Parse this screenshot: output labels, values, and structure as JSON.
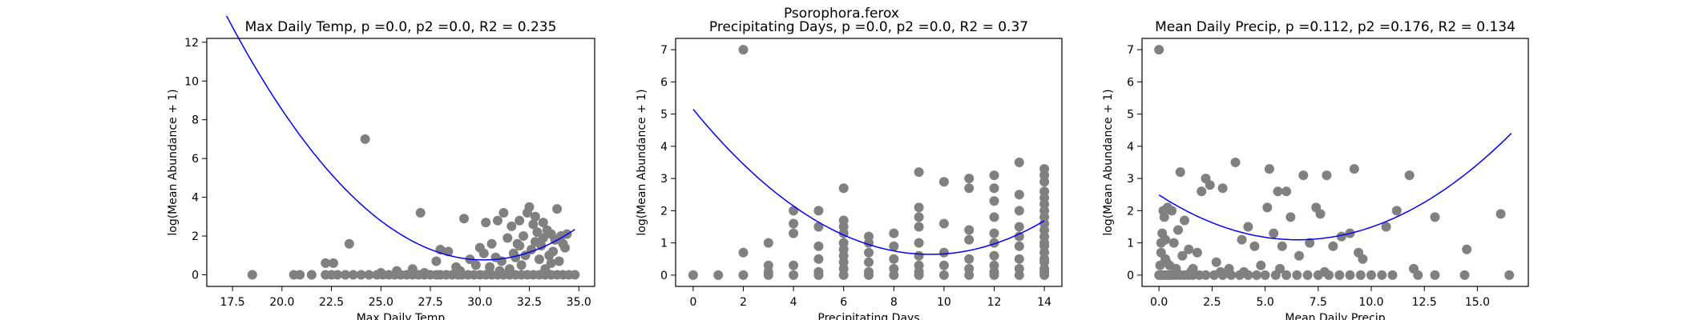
{
  "figure": {
    "suptitle": "Psorophora.ferox"
  },
  "chart_data": [
    {
      "type": "scatter",
      "title": "Max Daily Temp, p =0.0, p2 =0.0, R2 = 0.235",
      "xlabel": "Max Daily Temp",
      "ylabel": "log(Mean Abundance + 1)",
      "xlim": [
        16.2,
        35.8
      ],
      "ylim": [
        -0.6,
        12.2
      ],
      "xticks": [
        17.5,
        20.0,
        22.5,
        25.0,
        27.5,
        30.0,
        32.5,
        35.0
      ],
      "xtick_labels": [
        "17.5",
        "20.0",
        "22.5",
        "25.0",
        "27.5",
        "30.0",
        "32.5",
        "35.0"
      ],
      "yticks": [
        0,
        2,
        4,
        6,
        8,
        10,
        12
      ],
      "ytick_labels": [
        "0",
        "2",
        "4",
        "6",
        "8",
        "10",
        "12"
      ],
      "point_color": "#808080",
      "fit_color": "#0000ff",
      "fit": {
        "type": "quadratic",
        "coef": [
          0.0745,
          -4.5,
          68.72
        ],
        "x_range": [
          17.2,
          34.8
        ]
      },
      "points": [
        [
          18.5,
          0
        ],
        [
          20.6,
          0
        ],
        [
          20.9,
          0
        ],
        [
          21.5,
          0
        ],
        [
          22.2,
          0
        ],
        [
          22.5,
          0
        ],
        [
          22.8,
          0
        ],
        [
          23.2,
          0
        ],
        [
          23.6,
          0
        ],
        [
          24.0,
          0
        ],
        [
          24.4,
          0
        ],
        [
          24.8,
          0
        ],
        [
          25.1,
          0
        ],
        [
          25.4,
          0
        ],
        [
          25.7,
          0
        ],
        [
          26.0,
          0
        ],
        [
          26.3,
          0
        ],
        [
          26.6,
          0
        ],
        [
          26.9,
          0
        ],
        [
          27.2,
          0
        ],
        [
          27.5,
          0
        ],
        [
          27.8,
          0
        ],
        [
          28.0,
          0
        ],
        [
          28.3,
          0
        ],
        [
          28.6,
          0
        ],
        [
          28.9,
          0
        ],
        [
          29.1,
          0
        ],
        [
          29.4,
          0
        ],
        [
          29.7,
          0
        ],
        [
          30.0,
          0
        ],
        [
          30.3,
          0
        ],
        [
          30.6,
          0
        ],
        [
          30.9,
          0
        ],
        [
          31.2,
          0
        ],
        [
          31.5,
          0
        ],
        [
          31.8,
          0
        ],
        [
          32.1,
          0
        ],
        [
          32.4,
          0
        ],
        [
          32.7,
          0
        ],
        [
          33.0,
          0
        ],
        [
          33.3,
          0
        ],
        [
          33.6,
          0
        ],
        [
          33.9,
          0
        ],
        [
          34.2,
          0
        ],
        [
          34.5,
          0
        ],
        [
          34.8,
          0
        ],
        [
          22.2,
          0.6
        ],
        [
          22.6,
          0.6
        ],
        [
          23.4,
          1.6
        ],
        [
          25.0,
          0.1
        ],
        [
          25.8,
          0.2
        ],
        [
          26.6,
          0.3
        ],
        [
          27.2,
          0.1
        ],
        [
          27.8,
          0.7
        ],
        [
          24.2,
          7.0
        ],
        [
          27.0,
          3.2
        ],
        [
          28.0,
          1.3
        ],
        [
          28.4,
          1.2
        ],
        [
          28.8,
          0.4
        ],
        [
          29.2,
          2.9
        ],
        [
          29.8,
          0.5
        ],
        [
          30.2,
          1.1
        ],
        [
          30.3,
          2.7
        ],
        [
          30.6,
          1.6
        ],
        [
          30.9,
          2.8
        ],
        [
          31.2,
          3.2
        ],
        [
          31.6,
          2.5
        ],
        [
          31.8,
          0.9
        ],
        [
          32.0,
          1.5
        ],
        [
          32.2,
          2.0
        ],
        [
          32.4,
          3.2
        ],
        [
          32.5,
          3.5
        ],
        [
          32.7,
          2.6
        ],
        [
          32.8,
          1.7
        ],
        [
          33.0,
          0.8
        ],
        [
          33.2,
          1.9
        ],
        [
          33.4,
          2.3
        ],
        [
          33.6,
          0.6
        ],
        [
          33.7,
          1.2
        ],
        [
          33.9,
          3.4
        ],
        [
          34.1,
          2.0
        ],
        [
          34.3,
          1.4
        ],
        [
          30.5,
          0.4
        ],
        [
          31.0,
          0.2
        ],
        [
          31.4,
          1.9
        ],
        [
          31.7,
          1.1
        ],
        [
          32.1,
          0.5
        ],
        [
          32.3,
          1.0
        ],
        [
          32.6,
          1.3
        ],
        [
          32.9,
          2.2
        ],
        [
          33.1,
          1.5
        ],
        [
          33.3,
          0.3
        ],
        [
          33.5,
          1.0
        ],
        [
          33.8,
          1.8
        ],
        [
          34.0,
          0.7
        ],
        [
          34.4,
          2.1
        ],
        [
          30.8,
          0.9
        ],
        [
          31.5,
          0.3
        ],
        [
          32.0,
          2.8
        ],
        [
          29.5,
          0.8
        ],
        [
          29.0,
          0.2
        ],
        [
          30.0,
          1.4
        ],
        [
          31.1,
          0.7
        ],
        [
          31.9,
          1.6
        ],
        [
          32.8,
          3.0
        ],
        [
          33.2,
          2.7
        ],
        [
          33.6,
          2.1
        ],
        [
          34.2,
          1.6
        ]
      ]
    },
    {
      "type": "scatter",
      "title": "Precipitating Days, p =0.0, p2 =0.0, R2 = 0.37",
      "xlabel": "Precipitating Days",
      "ylabel": "log(Mean Abundance + 1)",
      "xlim": [
        -0.7,
        14.7
      ],
      "ylim": [
        -0.35,
        7.35
      ],
      "xticks": [
        0,
        2,
        4,
        6,
        8,
        10,
        12,
        14
      ],
      "xtick_labels": [
        "0",
        "2",
        "4",
        "6",
        "8",
        "10",
        "12",
        "14"
      ],
      "yticks": [
        0,
        1,
        2,
        3,
        4,
        5,
        6,
        7
      ],
      "ytick_labels": [
        "0",
        "1",
        "2",
        "3",
        "4",
        "5",
        "6",
        "7"
      ],
      "point_color": "#808080",
      "fit_color": "#0000ff",
      "fit": {
        "type": "quadratic",
        "coef": [
          0.0504,
          -0.953,
          5.15
        ],
        "x_range": [
          0,
          14
        ]
      },
      "points": [
        [
          0,
          0
        ],
        [
          1,
          0
        ],
        [
          2,
          0
        ],
        [
          2,
          0.7
        ],
        [
          2,
          7.0
        ],
        [
          3,
          0
        ],
        [
          3,
          0.1
        ],
        [
          3,
          0.3
        ],
        [
          3,
          1.0
        ],
        [
          4,
          0
        ],
        [
          4,
          0.3
        ],
        [
          4,
          1.3
        ],
        [
          4,
          1.6
        ],
        [
          4,
          2.0
        ],
        [
          5,
          0
        ],
        [
          5,
          0.1
        ],
        [
          5,
          0.5
        ],
        [
          5,
          0.9
        ],
        [
          5,
          1.5
        ],
        [
          5,
          2.0
        ],
        [
          6,
          0
        ],
        [
          6,
          0.2
        ],
        [
          6,
          0.4
        ],
        [
          6,
          0.6
        ],
        [
          6,
          0.8
        ],
        [
          6,
          1.0
        ],
        [
          6,
          1.3
        ],
        [
          6,
          1.5
        ],
        [
          6,
          1.7
        ],
        [
          6,
          2.7
        ],
        [
          7,
          0
        ],
        [
          7,
          0.1
        ],
        [
          7,
          0.4
        ],
        [
          7,
          0.7
        ],
        [
          7,
          1.0
        ],
        [
          7,
          1.2
        ],
        [
          8,
          0
        ],
        [
          8,
          0.2
        ],
        [
          8,
          0.5
        ],
        [
          8,
          0.9
        ],
        [
          8,
          1.3
        ],
        [
          9,
          0
        ],
        [
          9,
          0.1
        ],
        [
          9,
          0.3
        ],
        [
          9,
          0.6
        ],
        [
          9,
          1.0
        ],
        [
          9,
          1.5
        ],
        [
          9,
          1.8
        ],
        [
          9,
          2.1
        ],
        [
          9,
          3.2
        ],
        [
          10,
          0
        ],
        [
          10,
          0.3
        ],
        [
          10,
          0.7
        ],
        [
          10,
          1.6
        ],
        [
          10,
          2.9
        ],
        [
          11,
          0
        ],
        [
          11,
          0.2
        ],
        [
          11,
          0.5
        ],
        [
          11,
          1.1
        ],
        [
          11,
          1.4
        ],
        [
          11,
          2.7
        ],
        [
          11,
          3.0
        ],
        [
          12,
          0
        ],
        [
          12,
          0.1
        ],
        [
          12,
          0.3
        ],
        [
          12,
          0.6
        ],
        [
          12,
          1.0
        ],
        [
          12,
          1.3
        ],
        [
          12,
          1.8
        ],
        [
          12,
          2.3
        ],
        [
          12,
          2.7
        ],
        [
          12,
          3.1
        ],
        [
          13,
          0
        ],
        [
          13,
          0.2
        ],
        [
          13,
          0.5
        ],
        [
          13,
          0.9
        ],
        [
          13,
          1.2
        ],
        [
          13,
          1.5
        ],
        [
          13,
          2.0
        ],
        [
          13,
          2.5
        ],
        [
          13,
          3.5
        ],
        [
          14,
          0
        ],
        [
          14,
          0.1
        ],
        [
          14,
          0.2
        ],
        [
          14,
          0.4
        ],
        [
          14,
          0.5
        ],
        [
          14,
          0.7
        ],
        [
          14,
          0.9
        ],
        [
          14,
          1.0
        ],
        [
          14,
          1.2
        ],
        [
          14,
          1.4
        ],
        [
          14,
          1.6
        ],
        [
          14,
          1.8
        ],
        [
          14,
          2.0
        ],
        [
          14,
          2.2
        ],
        [
          14,
          2.4
        ],
        [
          14,
          2.6
        ],
        [
          14,
          2.9
        ],
        [
          14,
          3.1
        ],
        [
          14,
          3.3
        ]
      ]
    },
    {
      "type": "scatter",
      "title": "Mean Daily Precip, p =0.112, p2 =0.176, R2 = 0.134",
      "xlabel": "Mean Daily Precip",
      "ylabel": "log(Mean Abundance + 1)",
      "xlim": [
        -0.8,
        17.4
      ],
      "ylim": [
        -0.35,
        7.35
      ],
      "xticks": [
        0.0,
        2.5,
        5.0,
        7.5,
        10.0,
        12.5,
        15.0
      ],
      "xtick_labels": [
        "0.0",
        "2.5",
        "5.0",
        "7.5",
        "10.0",
        "12.5",
        "15.0"
      ],
      "yticks": [
        0,
        1,
        2,
        3,
        4,
        5,
        6,
        7
      ],
      "ytick_labels": [
        "0",
        "1",
        "2",
        "3",
        "4",
        "5",
        "6",
        "7"
      ],
      "point_color": "#808080",
      "fit_color": "#0000ff",
      "fit": {
        "type": "quadratic",
        "coef": [
          0.0326,
          -0.426,
          2.49
        ],
        "x_range": [
          0,
          16.6
        ]
      },
      "points": [
        [
          0,
          7.0
        ],
        [
          0,
          0
        ],
        [
          0.1,
          0
        ],
        [
          0.2,
          0
        ],
        [
          0.3,
          0
        ],
        [
          0.4,
          0
        ],
        [
          0.5,
          0
        ],
        [
          0.6,
          0
        ],
        [
          0.8,
          0
        ],
        [
          1.0,
          0
        ],
        [
          1.2,
          0
        ],
        [
          1.4,
          0
        ],
        [
          1.6,
          0
        ],
        [
          1.9,
          0
        ],
        [
          2.2,
          0
        ],
        [
          2.6,
          0
        ],
        [
          3.0,
          0
        ],
        [
          3.4,
          0
        ],
        [
          3.8,
          0
        ],
        [
          4.2,
          0
        ],
        [
          4.6,
          0
        ],
        [
          5.0,
          0
        ],
        [
          5.5,
          0
        ],
        [
          6.0,
          0
        ],
        [
          6.5,
          0
        ],
        [
          7.0,
          0
        ],
        [
          7.5,
          0
        ],
        [
          8.0,
          0
        ],
        [
          8.5,
          0
        ],
        [
          9.0,
          0
        ],
        [
          9.5,
          0
        ],
        [
          10.0,
          0
        ],
        [
          10.5,
          0
        ],
        [
          11.0,
          0
        ],
        [
          12.2,
          0
        ],
        [
          13.0,
          0
        ],
        [
          14.4,
          0
        ],
        [
          16.5,
          0
        ],
        [
          0.05,
          0.3
        ],
        [
          0.1,
          0.7
        ],
        [
          0.1,
          1.0
        ],
        [
          0.15,
          1.3
        ],
        [
          0.2,
          2.0
        ],
        [
          0.25,
          1.8
        ],
        [
          0.3,
          0.5
        ],
        [
          0.3,
          1.1
        ],
        [
          0.35,
          0.4
        ],
        [
          0.4,
          2.1
        ],
        [
          0.5,
          0.3
        ],
        [
          0.6,
          2.0
        ],
        [
          0.7,
          1.0
        ],
        [
          0.8,
          0.2
        ],
        [
          0.9,
          1.4
        ],
        [
          1.0,
          3.2
        ],
        [
          1.1,
          0.6
        ],
        [
          1.2,
          1.7
        ],
        [
          1.4,
          0.8
        ],
        [
          1.6,
          0.2
        ],
        [
          1.8,
          0.7
        ],
        [
          2.0,
          2.6
        ],
        [
          2.2,
          3.0
        ],
        [
          2.4,
          2.8
        ],
        [
          2.7,
          0.4
        ],
        [
          3.0,
          2.7
        ],
        [
          3.3,
          0.2
        ],
        [
          3.6,
          3.5
        ],
        [
          3.9,
          1.1
        ],
        [
          4.2,
          1.5
        ],
        [
          4.5,
          0.9
        ],
        [
          4.8,
          0.3
        ],
        [
          5.1,
          2.1
        ],
        [
          5.2,
          3.3
        ],
        [
          5.4,
          1.3
        ],
        [
          5.6,
          2.6
        ],
        [
          5.8,
          0.9
        ],
        [
          6.0,
          2.6
        ],
        [
          6.2,
          1.8
        ],
        [
          6.6,
          0.6
        ],
        [
          6.8,
          3.1
        ],
        [
          7.1,
          1.0
        ],
        [
          7.4,
          2.1
        ],
        [
          7.6,
          1.9
        ],
        [
          7.9,
          3.1
        ],
        [
          8.2,
          0.9
        ],
        [
          8.6,
          1.2
        ],
        [
          9.0,
          1.3
        ],
        [
          9.2,
          3.3
        ],
        [
          9.4,
          0.7
        ],
        [
          9.6,
          0.5
        ],
        [
          10.7,
          1.5
        ],
        [
          11.2,
          2.0
        ],
        [
          11.8,
          3.1
        ],
        [
          12.0,
          0.2
        ],
        [
          13.0,
          1.8
        ],
        [
          14.5,
          0.8
        ],
        [
          16.1,
          1.9
        ],
        [
          4.0,
          0.1
        ],
        [
          1.5,
          0.1
        ],
        [
          2.9,
          0.1
        ],
        [
          5.7,
          0.2
        ],
        [
          7.8,
          0.1
        ]
      ]
    }
  ]
}
